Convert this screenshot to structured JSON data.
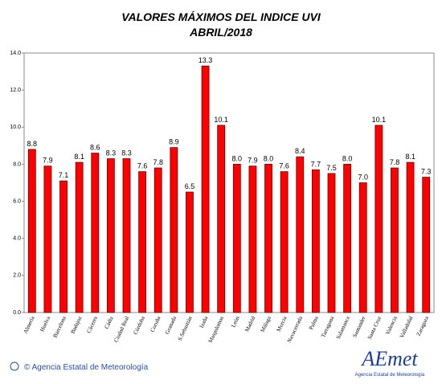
{
  "chart_data": {
    "type": "bar",
    "title": "VALORES MÁXIMOS DEL INDICE UVI",
    "subtitle": "ABRIL/2018",
    "categories": [
      "Almería",
      "Huelva",
      "Barcelona",
      "Badajoz",
      "Cáceres",
      "Cádiz",
      "Ciudad Real",
      "Córdoba",
      "Coruña",
      "Granada",
      "S.Sebastián",
      "Izaña",
      "Maspalomas",
      "León",
      "Madrid",
      "Málaga",
      "Murcia",
      "Navacerrada",
      "Palma",
      "Tarragona",
      "Salamanca",
      "Santander",
      "Santa Cruz",
      "Valencia",
      "Valladolid",
      "Zaragoza"
    ],
    "values": [
      8.8,
      7.9,
      7.1,
      8.1,
      8.6,
      8.3,
      8.3,
      7.6,
      7.8,
      8.9,
      6.5,
      13.3,
      10.1,
      8.0,
      7.9,
      8.0,
      7.6,
      8.4,
      7.7,
      7.5,
      8.0,
      7.0,
      10.1,
      7.8,
      8.1,
      7.3
    ],
    "value_labels": [
      "8.8",
      "7.9",
      "7.1",
      "8.1",
      "8.6",
      "8.3",
      "8.3",
      "7.6",
      "7.8",
      "8.9",
      "6.5",
      "13.3",
      "10.1",
      "8.0",
      "7.9",
      "8.0",
      "7.6",
      "8.4",
      "7.7",
      "7.5",
      "8.0",
      "7.0",
      "10.1",
      "7.8",
      "8.1",
      "7.3"
    ],
    "color": "#ff0000",
    "ylim": [
      0,
      14
    ],
    "yticks": [
      {
        "value": 0,
        "label": "0.0"
      },
      {
        "value": 2,
        "label": "2.0"
      },
      {
        "value": 4,
        "label": "4.0"
      },
      {
        "value": 6,
        "label": "6.0"
      },
      {
        "value": 8,
        "label": "8.0"
      },
      {
        "value": 10,
        "label": "10.0"
      },
      {
        "value": 12,
        "label": "12.0"
      },
      {
        "value": 14,
        "label": "14.0"
      }
    ],
    "copyright": "© Agencia Estatal de Meteorología",
    "logo": "AEmet",
    "logo_subtitle": "Agencia Estatal de Meteorología"
  }
}
